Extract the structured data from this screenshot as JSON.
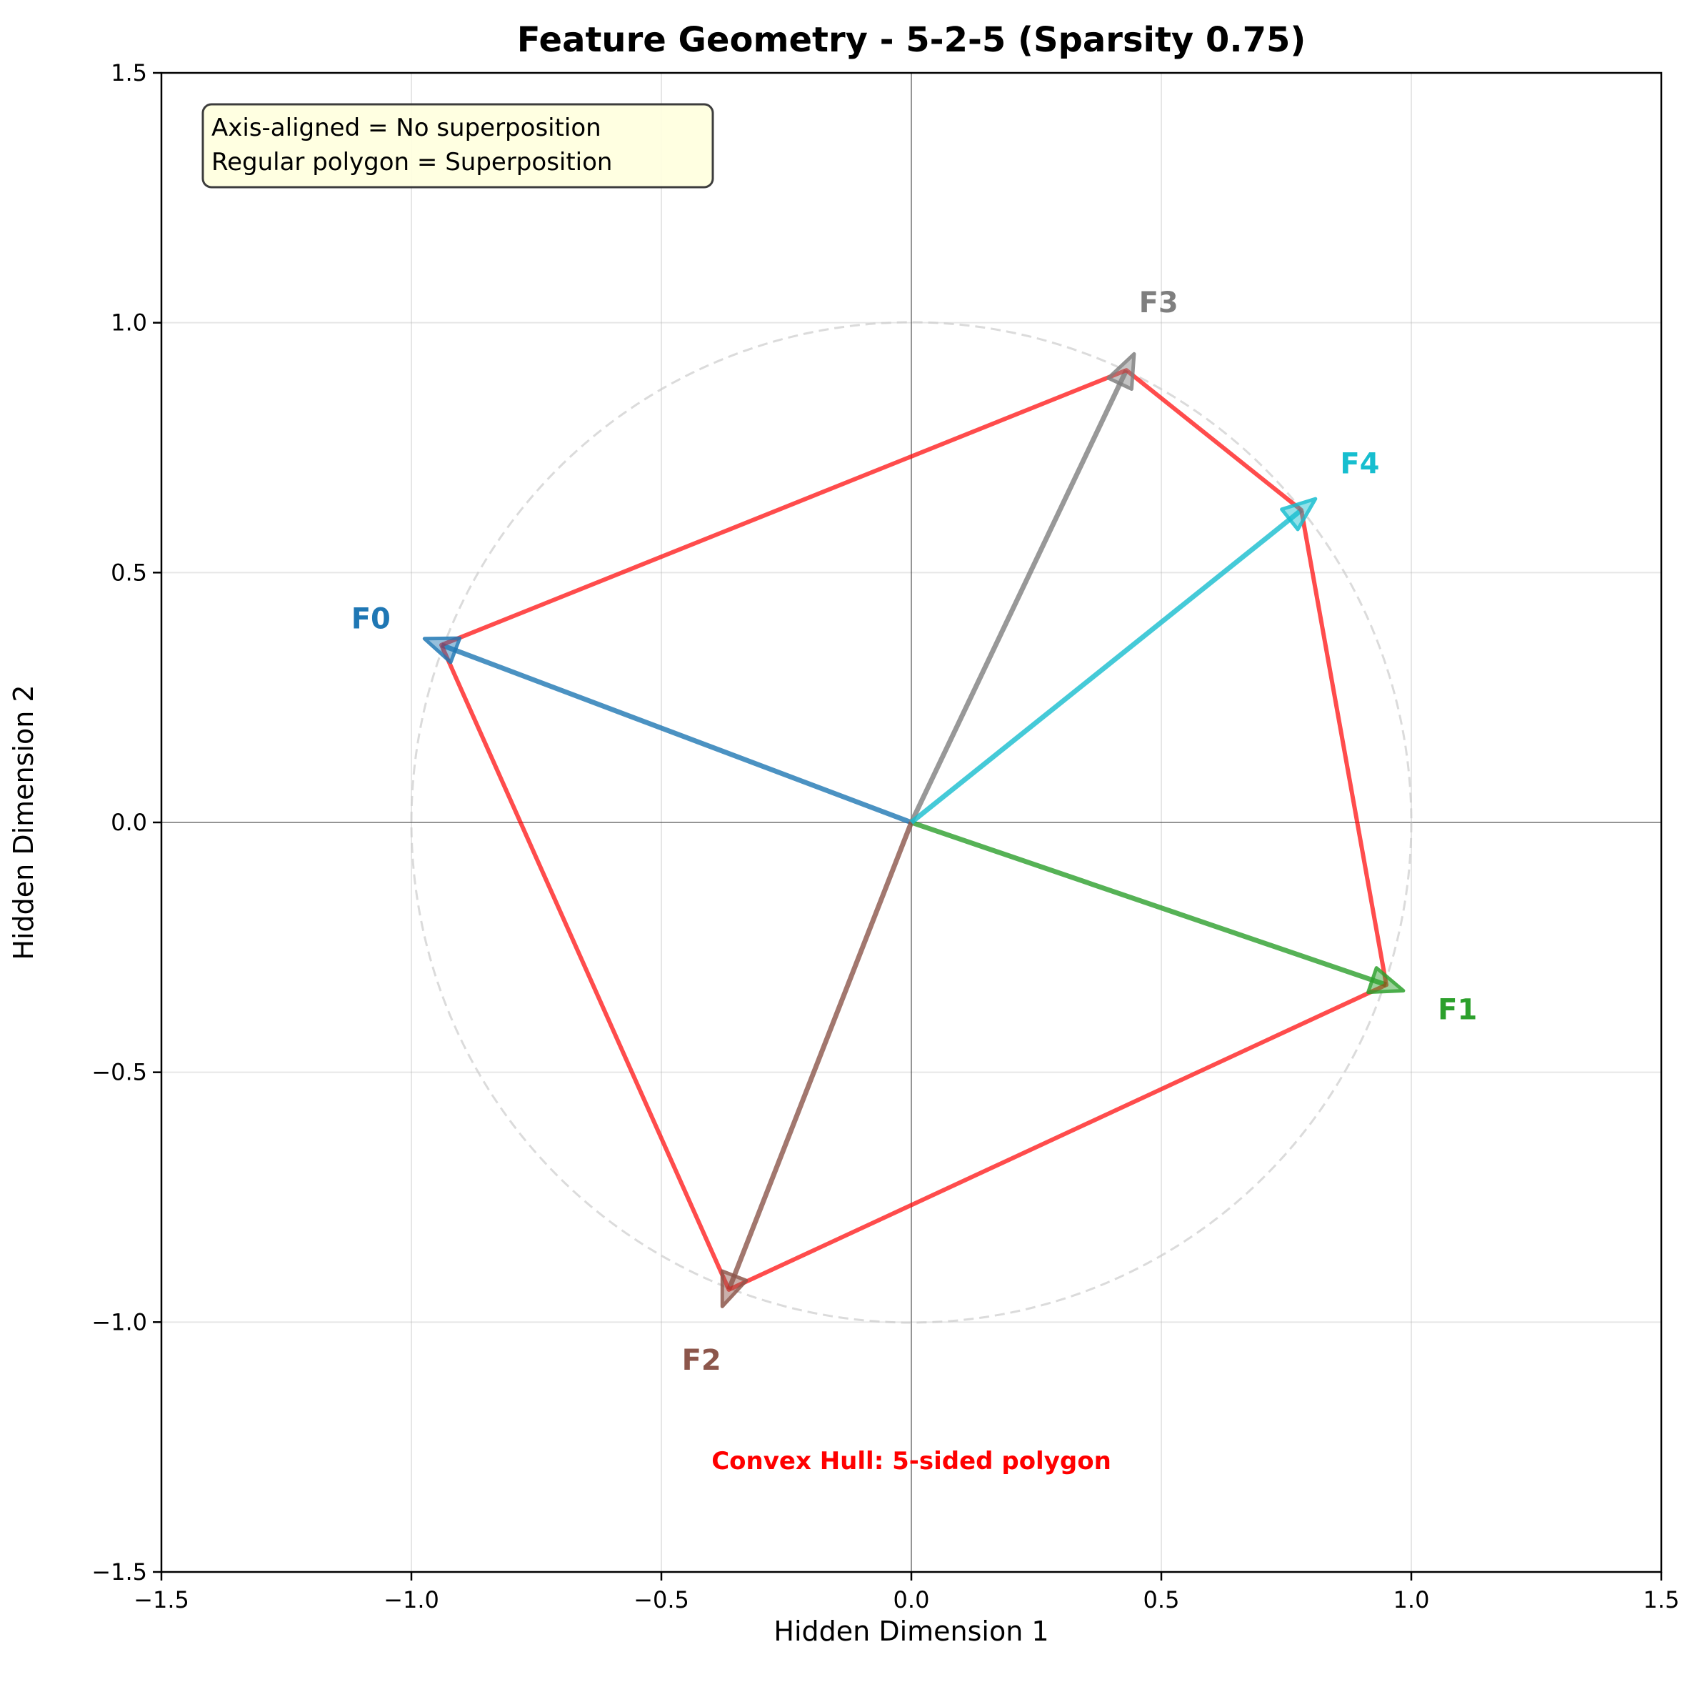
{
  "chart_data": {
    "type": "scatter",
    "title": "Feature Geometry - 5-2-5 (Sparsity 0.75)",
    "xlabel": "Hidden Dimension 1",
    "ylabel": "Hidden Dimension 2",
    "xlim": [
      -1.5,
      1.5
    ],
    "ylim": [
      -1.5,
      1.5
    ],
    "xticks": [
      -1.5,
      -1.0,
      -0.5,
      0.0,
      0.5,
      1.0,
      1.5
    ],
    "yticks": [
      -1.5,
      -1.0,
      -0.5,
      0.0,
      0.5,
      1.0,
      1.5
    ],
    "xtick_labels": [
      "−1.5",
      "−1.0",
      "−0.5",
      "0.0",
      "0.5",
      "1.0",
      "1.5"
    ],
    "ytick_labels": [
      "−1.5",
      "−1.0",
      "−0.5",
      "0.0",
      "0.5",
      "1.0",
      "1.5"
    ],
    "grid": true,
    "unit_circle_radius": 1.0,
    "features": [
      {
        "name": "F0",
        "x": -0.94,
        "y": 0.355,
        "color": "#1f77b4"
      },
      {
        "name": "F1",
        "x": 0.95,
        "y": -0.325,
        "color": "#2ca02c"
      },
      {
        "name": "F2",
        "x": -0.365,
        "y": -0.935,
        "color": "#8c564b"
      },
      {
        "name": "F3",
        "x": 0.43,
        "y": 0.905,
        "color": "#7f7f7f"
      },
      {
        "name": "F4",
        "x": 0.78,
        "y": 0.625,
        "color": "#17becf"
      }
    ],
    "hull_order": [
      "F0",
      "F3",
      "F4",
      "F1",
      "F2"
    ],
    "hull_color": "#ff0000",
    "info_box": [
      "Axis-aligned = No superposition",
      "Regular polygon = Superposition"
    ],
    "hull_annotation": "Convex Hull: 5-sided polygon"
  }
}
